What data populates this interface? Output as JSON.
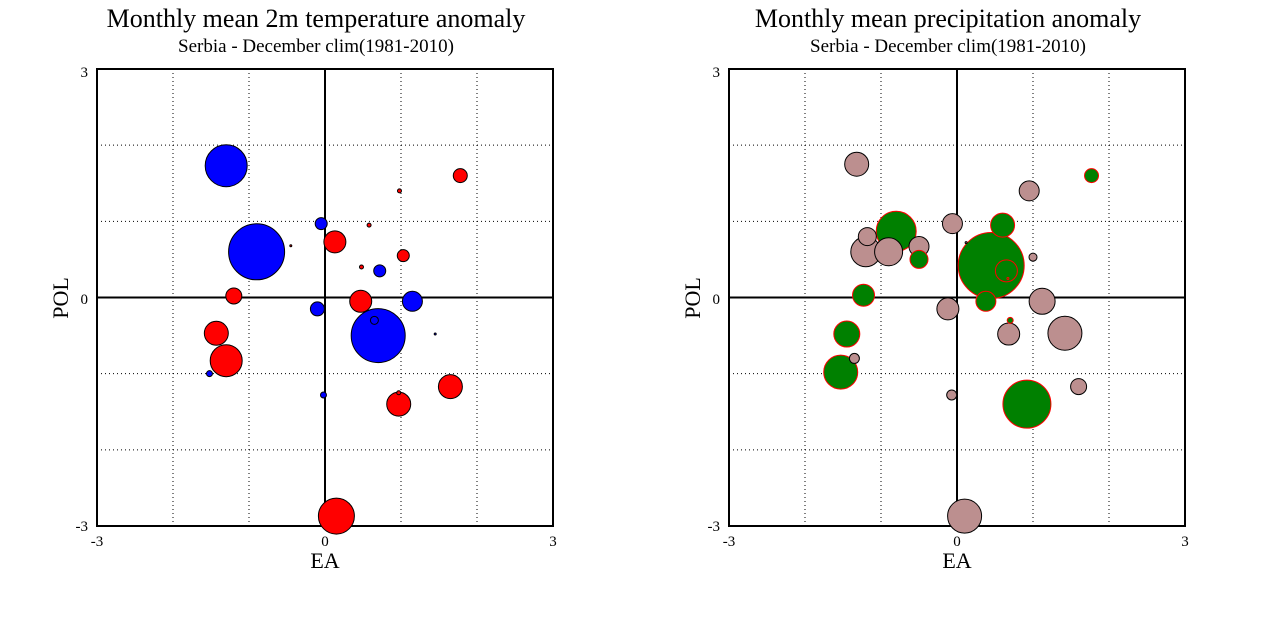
{
  "chart_data": [
    {
      "type": "scatter",
      "title": "Monthly mean 2m temperature anomaly",
      "subtitle": "Serbia - December  clim(1981-2010)",
      "xlabel": "EA",
      "ylabel": "POL",
      "xlim": [
        -3,
        3
      ],
      "ylim": [
        -3,
        3
      ],
      "x_ticks": [
        "-3",
        "0",
        "3"
      ],
      "y_ticks": [
        "3",
        "0",
        "-3"
      ],
      "grid": true,
      "grid_style": "dotted",
      "colors": {
        "positive": "#ff0000",
        "negative": "#0000ff",
        "outline": "#000000"
      },
      "points": [
        {
          "x": -1.3,
          "y": 1.73,
          "r": 21,
          "color": "#0000ff"
        },
        {
          "x": -0.9,
          "y": 0.6,
          "r": 28,
          "color": "#0000ff"
        },
        {
          "x": -1.2,
          "y": 0.02,
          "r": 8,
          "color": "#ff0000"
        },
        {
          "x": -1.43,
          "y": -0.47,
          "r": 12,
          "color": "#ff0000"
        },
        {
          "x": -1.3,
          "y": -0.83,
          "r": 16,
          "color": "#ff0000"
        },
        {
          "x": -1.52,
          "y": -1.0,
          "r": 3,
          "color": "#0000ff"
        },
        {
          "x": -0.05,
          "y": 0.97,
          "r": 6,
          "color": "#0000ff"
        },
        {
          "x": 0.13,
          "y": 0.73,
          "r": 11,
          "color": "#ff0000"
        },
        {
          "x": -0.1,
          "y": -0.15,
          "r": 7,
          "color": "#0000ff"
        },
        {
          "x": 0.47,
          "y": -0.05,
          "r": 11,
          "color": "#ff0000"
        },
        {
          "x": 0.7,
          "y": -0.5,
          "r": 27,
          "color": "#0000ff"
        },
        {
          "x": 1.15,
          "y": -0.05,
          "r": 10,
          "color": "#0000ff"
        },
        {
          "x": 0.72,
          "y": 0.35,
          "r": 6,
          "color": "#0000ff"
        },
        {
          "x": 1.03,
          "y": 0.55,
          "r": 6,
          "color": "#ff0000"
        },
        {
          "x": 1.78,
          "y": 1.6,
          "r": 7,
          "color": "#ff0000"
        },
        {
          "x": 0.98,
          "y": 1.4,
          "r": 2,
          "color": "#ff0000"
        },
        {
          "x": 0.58,
          "y": 0.95,
          "r": 2,
          "color": "#ff0000"
        },
        {
          "x": 0.48,
          "y": 0.4,
          "r": 2,
          "color": "#ff0000"
        },
        {
          "x": -0.45,
          "y": 0.68,
          "r": 1,
          "color": "#ff0000"
        },
        {
          "x": 0.65,
          "y": -0.3,
          "r": 4,
          "color": "#0000ff"
        },
        {
          "x": 1.45,
          "y": -0.48,
          "r": 1,
          "color": "#0000ff"
        },
        {
          "x": 1.65,
          "y": -1.17,
          "r": 12,
          "color": "#ff0000"
        },
        {
          "x": 0.97,
          "y": -1.25,
          "r": 2,
          "color": "#ff0000"
        },
        {
          "x": 0.97,
          "y": -1.4,
          "r": 12,
          "color": "#ff0000"
        },
        {
          "x": -0.02,
          "y": -1.28,
          "r": 3,
          "color": "#0000ff"
        },
        {
          "x": 0.15,
          "y": -2.87,
          "r": 18,
          "color": "#ff0000"
        }
      ]
    },
    {
      "type": "scatter",
      "title": "Monthly mean precipitation anomaly",
      "subtitle": "Serbia - December  clim(1981-2010)",
      "xlabel": "EA",
      "ylabel": "POL",
      "xlim": [
        -3,
        3
      ],
      "ylim": [
        -3,
        3
      ],
      "x_ticks": [
        "-3",
        "0",
        "3"
      ],
      "y_ticks": [
        "3",
        "0",
        "-3"
      ],
      "grid": true,
      "grid_style": "dotted",
      "colors": {
        "positive": "#008000",
        "negative": "#bc8f8f",
        "outline_positive": "#ff0000",
        "outline_negative": "#000000"
      },
      "points": [
        {
          "x": -1.32,
          "y": 1.75,
          "r": 12,
          "color": "#bc8f8f"
        },
        {
          "x": -1.2,
          "y": 0.6,
          "r": 15,
          "color": "#bc8f8f"
        },
        {
          "x": -1.18,
          "y": 0.8,
          "r": 9,
          "color": "#bc8f8f"
        },
        {
          "x": -0.9,
          "y": 0.6,
          "r": 14,
          "color": "#bc8f8f"
        },
        {
          "x": -0.8,
          "y": 0.87,
          "r": 20,
          "color": "#008000"
        },
        {
          "x": -0.5,
          "y": 0.67,
          "r": 10,
          "color": "#bc8f8f"
        },
        {
          "x": -0.5,
          "y": 0.5,
          "r": 9,
          "color": "#008000"
        },
        {
          "x": -1.23,
          "y": 0.03,
          "r": 11,
          "color": "#008000"
        },
        {
          "x": -1.45,
          "y": -0.48,
          "r": 13,
          "color": "#008000"
        },
        {
          "x": -1.35,
          "y": -0.8,
          "r": 5,
          "color": "#bc8f8f"
        },
        {
          "x": -1.53,
          "y": -0.98,
          "r": 17,
          "color": "#008000"
        },
        {
          "x": -0.06,
          "y": 0.97,
          "r": 10,
          "color": "#bc8f8f"
        },
        {
          "x": -0.12,
          "y": -0.15,
          "r": 11,
          "color": "#bc8f8f"
        },
        {
          "x": 0.45,
          "y": 0.42,
          "r": 33,
          "color": "#008000"
        },
        {
          "x": 0.6,
          "y": 0.95,
          "r": 12,
          "color": "#008000"
        },
        {
          "x": 0.38,
          "y": -0.05,
          "r": 10,
          "color": "#008000"
        },
        {
          "x": 0.65,
          "y": 0.35,
          "r": 11,
          "color": "#008000"
        },
        {
          "x": 0.7,
          "y": -0.3,
          "r": 3,
          "color": "#008000"
        },
        {
          "x": 0.67,
          "y": 0.25,
          "r": 1,
          "color": "#008000"
        },
        {
          "x": 0.95,
          "y": 1.4,
          "r": 10,
          "color": "#bc8f8f"
        },
        {
          "x": 1.0,
          "y": 0.53,
          "r": 4,
          "color": "#bc8f8f"
        },
        {
          "x": 1.12,
          "y": -0.05,
          "r": 13,
          "color": "#bc8f8f"
        },
        {
          "x": 0.68,
          "y": -0.48,
          "r": 11,
          "color": "#bc8f8f"
        },
        {
          "x": 1.42,
          "y": -0.47,
          "r": 17,
          "color": "#bc8f8f"
        },
        {
          "x": 1.77,
          "y": 1.6,
          "r": 7,
          "color": "#008000"
        },
        {
          "x": 1.6,
          "y": -1.17,
          "r": 8,
          "color": "#bc8f8f"
        },
        {
          "x": 0.92,
          "y": -1.4,
          "r": 24,
          "color": "#008000"
        },
        {
          "x": -0.07,
          "y": -1.28,
          "r": 5,
          "color": "#bc8f8f"
        },
        {
          "x": 0.1,
          "y": -2.87,
          "r": 17,
          "color": "#bc8f8f"
        },
        {
          "x": 0.12,
          "y": 0.72,
          "r": 1,
          "color": "#bc8f8f"
        }
      ]
    }
  ]
}
